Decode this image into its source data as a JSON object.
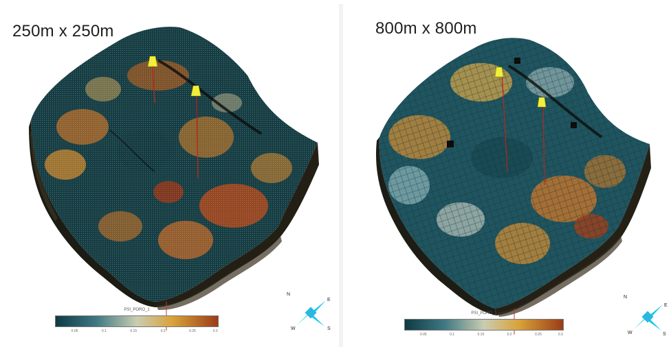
{
  "panels": [
    {
      "title": "250m x 250m",
      "colorbar": {
        "name": "PSI_PORO_1",
        "ticks": [
          "0.05",
          "0.1",
          "0.15",
          "0.2",
          "0.25",
          "0.3"
        ]
      },
      "compass": {
        "n": "N",
        "e": "E",
        "s": "S",
        "w": "W"
      }
    },
    {
      "title": "800m x 800m",
      "colorbar": {
        "name": "PSI_PORO_1",
        "ticks": [
          "0.05",
          "0.1",
          "0.15",
          "0.2",
          "0.25",
          "0.3"
        ]
      },
      "compass": {
        "n": "N",
        "e": "E",
        "s": "S",
        "w": "W"
      }
    }
  ],
  "colors": {
    "low": "#0e3a44",
    "mid_low": "#3f7883",
    "mid": "#c9cdb2",
    "mid_high": "#d9a23a",
    "high": "#9a3c18",
    "well_marker": "#f2ef3a",
    "compass_cyan": "#18c8e8",
    "compass_orange": "#e06a1c"
  },
  "icons": [
    "well-marker-icon",
    "compass-icon"
  ]
}
